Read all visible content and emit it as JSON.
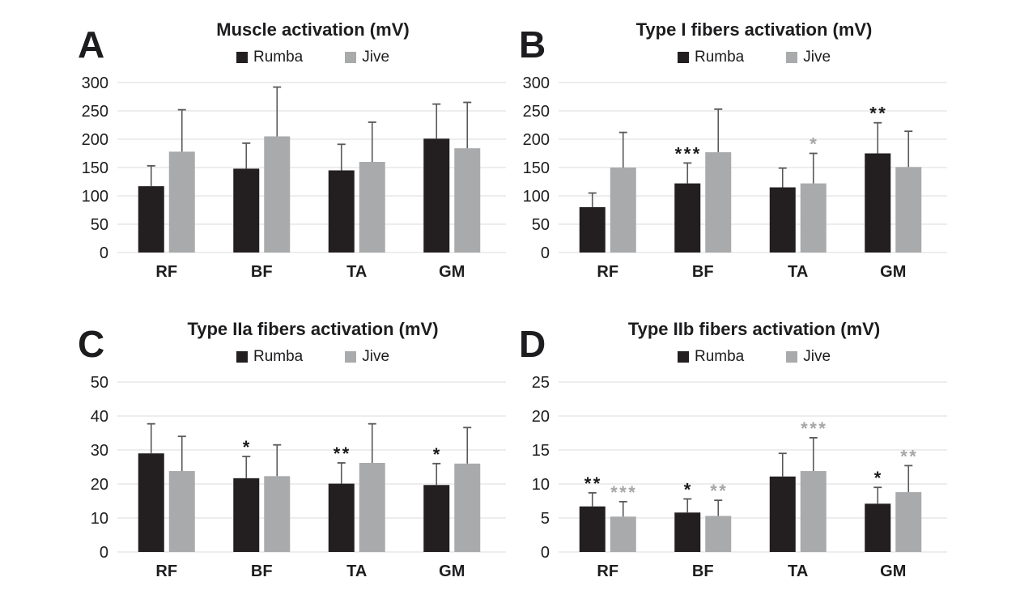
{
  "colors": {
    "background": "#ffffff",
    "text": "#1d1d1f",
    "gridline": "#e2e2e2",
    "error_bar": "#58595b",
    "sig_black": "#1a1a1a",
    "sig_gray": "#a6a6a6",
    "rumba": "#231f20",
    "jive": "#a9aaac"
  },
  "chart_data": [
    {
      "panel": "A",
      "type": "bar",
      "title": "Muscle activation (mV)",
      "categories": [
        "RF",
        "BF",
        "TA",
        "GM"
      ],
      "ylim": [
        0,
        300
      ],
      "yticks": [
        0,
        50,
        100,
        150,
        200,
        250,
        300
      ],
      "grid": true,
      "legend_position": "top",
      "series": [
        {
          "name": "Rumba",
          "color": "#231f20",
          "values": [
            117,
            148,
            145,
            201
          ],
          "errors_up": [
            36,
            45,
            46,
            61
          ],
          "significance": [
            "",
            "",
            "",
            ""
          ]
        },
        {
          "name": "Jive",
          "color": "#a9aaac",
          "values": [
            178,
            205,
            160,
            184
          ],
          "errors_up": [
            74,
            87,
            70,
            81
          ],
          "significance": [
            "",
            "",
            "",
            ""
          ]
        }
      ]
    },
    {
      "panel": "B",
      "type": "bar",
      "title": "Type I fibers activation (mV)",
      "categories": [
        "RF",
        "BF",
        "TA",
        "GM"
      ],
      "ylim": [
        0,
        300
      ],
      "yticks": [
        0,
        50,
        100,
        150,
        200,
        250,
        300
      ],
      "grid": true,
      "legend_position": "top",
      "series": [
        {
          "name": "Rumba",
          "color": "#231f20",
          "values": [
            80,
            122,
            115,
            175
          ],
          "errors_up": [
            25,
            36,
            34,
            54
          ],
          "significance": [
            "",
            "***",
            "",
            "**"
          ]
        },
        {
          "name": "Jive",
          "color": "#a9aaac",
          "values": [
            150,
            177,
            122,
            151
          ],
          "errors_up": [
            62,
            76,
            53,
            63
          ],
          "significance": [
            "",
            "",
            "*",
            ""
          ]
        }
      ]
    },
    {
      "panel": "C",
      "type": "bar",
      "title": "Type IIa fibers activation (mV)",
      "categories": [
        "RF",
        "BF",
        "TA",
        "GM"
      ],
      "ylim": [
        0,
        50
      ],
      "yticks": [
        0,
        10,
        20,
        30,
        40,
        50
      ],
      "grid": true,
      "legend_position": "top",
      "series": [
        {
          "name": "Rumba",
          "color": "#231f20",
          "values": [
            29,
            21.7,
            20.1,
            19.7
          ],
          "errors_up": [
            8.7,
            6.4,
            6.1,
            6.3
          ],
          "significance": [
            "",
            "*",
            "**",
            "*"
          ]
        },
        {
          "name": "Jive",
          "color": "#a9aaac",
          "values": [
            23.8,
            22.3,
            26.2,
            26
          ],
          "errors_up": [
            10.2,
            9.2,
            11.5,
            10.6
          ],
          "significance": [
            "",
            "",
            "",
            ""
          ]
        }
      ]
    },
    {
      "panel": "D",
      "type": "bar",
      "title": "Type IIb fibers activation (mV)",
      "categories": [
        "RF",
        "BF",
        "TA",
        "GM"
      ],
      "ylim": [
        0,
        25
      ],
      "yticks": [
        0,
        5,
        10,
        15,
        20,
        25
      ],
      "grid": true,
      "legend_position": "top",
      "series": [
        {
          "name": "Rumba",
          "color": "#231f20",
          "values": [
            6.7,
            5.8,
            11.1,
            7.1
          ],
          "errors_up": [
            2,
            2,
            3.4,
            2.4
          ],
          "significance": [
            "**",
            "*",
            "",
            "*"
          ]
        },
        {
          "name": "Jive",
          "color": "#a9aaac",
          "values": [
            5.2,
            5.3,
            11.9,
            8.8
          ],
          "errors_up": [
            2.2,
            2.3,
            4.9,
            3.9
          ],
          "significance": [
            "***",
            "**",
            "***",
            "**"
          ]
        }
      ]
    }
  ]
}
